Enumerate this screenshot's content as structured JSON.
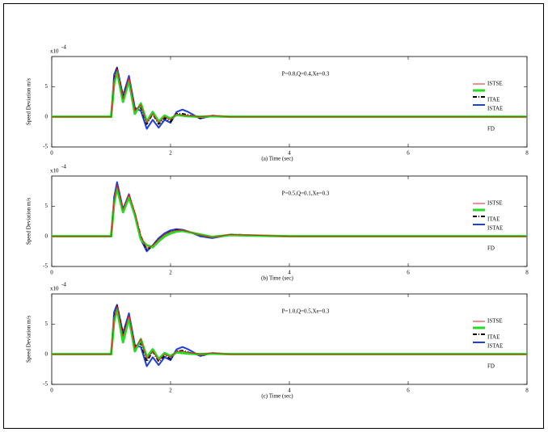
{
  "chart_data": [
    {
      "type": "line",
      "annotation": "P=0.8,Q=0.4,Xe=0.3",
      "xlabel": "(a) Time (sec)",
      "ylabel": "Speed Deviation m/s",
      "y_multiplier": "x10",
      "y_multiplier_exponent": "-4",
      "xlim": [
        0,
        8
      ],
      "xticks": [
        0,
        2,
        4,
        6,
        8
      ],
      "ylim": [
        -5,
        10
      ],
      "yticks": [
        -5,
        0,
        5
      ],
      "x": [
        0,
        1.0,
        1.05,
        1.1,
        1.2,
        1.3,
        1.4,
        1.5,
        1.6,
        1.7,
        1.8,
        1.9,
        2.0,
        2.1,
        2.2,
        2.3,
        2.5,
        2.7,
        3.0,
        4.0,
        6.0,
        8.0
      ],
      "series": [
        {
          "name": "ISTSE",
          "color": "#e02020",
          "values": [
            0,
            0,
            6,
            8,
            3,
            6.5,
            1,
            2,
            -1,
            0.5,
            -1,
            0,
            -0.5,
            0.5,
            0.3,
            0.2,
            0,
            0.2,
            0,
            0,
            0,
            0
          ]
        },
        {
          "name": "ITAE",
          "color": "#22dd22",
          "values": [
            0,
            0,
            5.5,
            7.5,
            2.5,
            6,
            0.5,
            2.2,
            -0.8,
            0.8,
            -0.8,
            0.2,
            -0.3,
            0.3,
            0.2,
            0.1,
            0,
            0.1,
            0,
            0,
            0,
            0
          ]
        },
        {
          "name": "ISTAE",
          "color": "#000000",
          "values": [
            0,
            0,
            6.2,
            8,
            3.2,
            6.3,
            1.2,
            1.5,
            -1.2,
            0.5,
            -1.2,
            -0.2,
            -0.8,
            0.5,
            0.5,
            0.3,
            -0.2,
            0.1,
            0,
            0,
            0,
            0
          ]
        },
        {
          "name": "FD",
          "color": "#1f3fe0",
          "values": [
            0,
            0,
            7,
            8.2,
            3.5,
            6.8,
            1.5,
            1,
            -2,
            -0.5,
            -1.8,
            -0.5,
            -1,
            0.8,
            1.2,
            0.8,
            -0.3,
            0.2,
            0,
            0,
            0,
            0
          ]
        }
      ]
    },
    {
      "type": "line",
      "annotation": "P=0.5,Q=0.1,Xe=0.3",
      "xlabel": "(b) Time (sec)",
      "ylabel": "Speed Deviation m/s",
      "y_multiplier": "x10",
      "y_multiplier_exponent": "-4",
      "xlim": [
        0,
        8
      ],
      "xticks": [
        0,
        2,
        4,
        6,
        8
      ],
      "ylim": [
        -5,
        10
      ],
      "yticks": [
        -5,
        0,
        5
      ],
      "x": [
        0,
        1.0,
        1.05,
        1.1,
        1.2,
        1.3,
        1.4,
        1.5,
        1.6,
        1.7,
        1.8,
        1.9,
        2.0,
        2.1,
        2.2,
        2.3,
        2.5,
        2.7,
        3.0,
        4.0,
        6.0,
        8.0
      ],
      "series": [
        {
          "name": "ISTSE",
          "color": "#e02020",
          "values": [
            0,
            0,
            6,
            8.5,
            4.5,
            7,
            4,
            0,
            -2,
            -1.5,
            -0.5,
            0.3,
            0.8,
            1,
            1,
            0.8,
            0.2,
            -0.2,
            0.3,
            0,
            0,
            0
          ]
        },
        {
          "name": "ITAE",
          "color": "#22dd22",
          "values": [
            0,
            0,
            5.5,
            8,
            4,
            6.5,
            3.5,
            -0.5,
            -1.5,
            -1.8,
            -0.8,
            0,
            0.5,
            0.8,
            0.9,
            0.7,
            0.3,
            -0.1,
            0.2,
            0,
            0,
            0
          ]
        },
        {
          "name": "ISTAE",
          "color": "#000000",
          "values": [
            0,
            0,
            6,
            8.3,
            4.3,
            6.8,
            3.8,
            0,
            -2.2,
            -1.5,
            -0.5,
            0.2,
            0.8,
            1,
            1,
            0.8,
            0.2,
            -0.2,
            0.3,
            0,
            0,
            0
          ]
        },
        {
          "name": "FD",
          "color": "#1f3fe0",
          "values": [
            0,
            0,
            6.5,
            9,
            4.5,
            7,
            3.5,
            -0.5,
            -2.5,
            -1.5,
            -0.3,
            0.5,
            1,
            1.2,
            1.1,
            0.8,
            0,
            -0.3,
            0.2,
            0,
            0,
            0
          ]
        }
      ]
    },
    {
      "type": "line",
      "annotation": "P=1.0,Q=0.5,Xe=0.3",
      "xlabel": "(c) Time (sec)",
      "ylabel": "Speed Deviation m/s",
      "y_multiplier": "x10",
      "y_multiplier_exponent": "-4",
      "xlim": [
        0,
        8
      ],
      "xticks": [
        0,
        2,
        4,
        6,
        8
      ],
      "ylim": [
        -5,
        10
      ],
      "yticks": [
        -5,
        0,
        5
      ],
      "x": [
        0,
        1.0,
        1.05,
        1.1,
        1.2,
        1.3,
        1.4,
        1.5,
        1.6,
        1.7,
        1.8,
        1.9,
        2.0,
        2.1,
        2.2,
        2.3,
        2.5,
        2.7,
        3.0,
        4.0,
        6.0,
        8.0
      ],
      "series": [
        {
          "name": "ISTSE",
          "color": "#e02020",
          "values": [
            0,
            0,
            6,
            8,
            3,
            6.5,
            1,
            2.5,
            -0.8,
            0.5,
            -1,
            0,
            -0.5,
            0.5,
            0.5,
            0.3,
            0,
            0.2,
            0,
            0,
            0,
            0
          ]
        },
        {
          "name": "ITAE",
          "color": "#22dd22",
          "values": [
            0,
            0,
            5.5,
            7.5,
            2,
            6,
            0.5,
            2.5,
            -0.5,
            0.8,
            -0.8,
            0.2,
            -0.3,
            0.3,
            0.2,
            0.1,
            0,
            0.1,
            0,
            0,
            0,
            0
          ]
        },
        {
          "name": "ISTAE",
          "color": "#000000",
          "values": [
            0,
            0,
            6.2,
            8,
            3.2,
            6.3,
            1.2,
            1.8,
            -1.2,
            0.5,
            -1.2,
            -0.2,
            -0.8,
            0.5,
            0.6,
            0.3,
            -0.2,
            0.1,
            0,
            0,
            0,
            0
          ]
        },
        {
          "name": "FD",
          "color": "#1f3fe0",
          "values": [
            0,
            0,
            7,
            8.2,
            3.5,
            6.8,
            1.5,
            1.2,
            -2,
            -0.5,
            -1.8,
            -0.5,
            -1,
            0.8,
            1.2,
            0.8,
            -0.3,
            0.2,
            0,
            0,
            0,
            0
          ]
        }
      ]
    }
  ]
}
